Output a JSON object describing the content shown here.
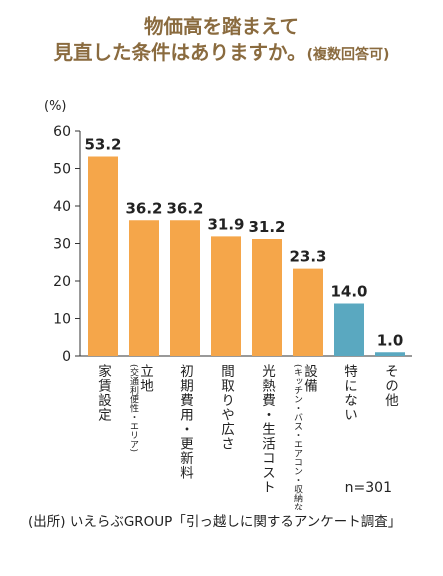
{
  "title": {
    "line1": "物価高を踏まえて",
    "line2": "見直した条件はありますか。",
    "note": "(複数回答可)"
  },
  "chart_data": {
    "type": "bar",
    "yunit": "(%)",
    "ylim": [
      0,
      60
    ],
    "yticks": [
      0,
      10,
      20,
      30,
      40,
      50,
      60
    ],
    "grid": false,
    "categories": [
      {
        "main": "家賃設定",
        "sub": ""
      },
      {
        "main": "立地",
        "sub": "(交通利便性・エリア)"
      },
      {
        "main": "初期費用・更新料",
        "sub": ""
      },
      {
        "main": "間取りや広さ",
        "sub": ""
      },
      {
        "main": "光熱費・生活コスト",
        "sub": ""
      },
      {
        "main": "設備",
        "sub": "(キッチン・バス・エアコン・収納など)"
      },
      {
        "main": "特にない",
        "sub": ""
      },
      {
        "main": "その他",
        "sub": ""
      }
    ],
    "values": [
      53.2,
      36.2,
      36.2,
      31.9,
      31.2,
      23.3,
      14.0,
      1.0
    ],
    "value_labels": [
      "53.2",
      "36.2",
      "36.2",
      "31.9",
      "31.2",
      "23.3",
      "14.0",
      "1.0"
    ],
    "colors": [
      "#f5a64a",
      "#f5a64a",
      "#f5a64a",
      "#f5a64a",
      "#f5a64a",
      "#f5a64a",
      "#5aa8c0",
      "#5aa8c0"
    ],
    "n_label": "n=301"
  },
  "source": "(出所) いえらぶGROUP「引っ越しに関するアンケート調査」"
}
